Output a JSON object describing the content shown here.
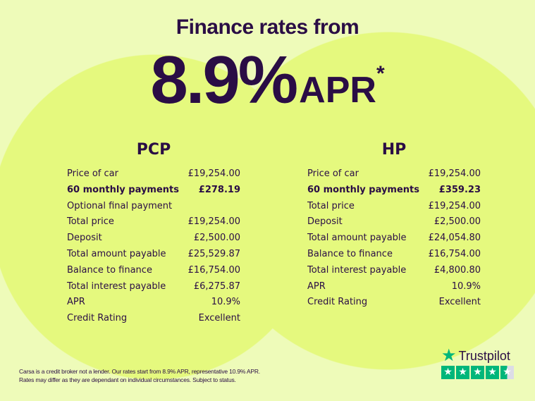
{
  "header": {
    "title": "Finance rates from",
    "rate": "8.9%",
    "apr": "APR",
    "asterisk": "*"
  },
  "pcp": {
    "title": "PCP",
    "rows": [
      {
        "label": "Price of car",
        "value": "£19,254.00"
      },
      {
        "label": "60 monthly payments",
        "value": "£278.19",
        "bold": true
      },
      {
        "label": "Optional final payment",
        "value": ""
      },
      {
        "label": "Total price",
        "value": "£19,254.00"
      },
      {
        "label": "Deposit",
        "value": "£2,500.00"
      },
      {
        "label": "Total amount payable",
        "value": "£25,529.87"
      },
      {
        "label": "Balance to finance",
        "value": "£16,754.00"
      },
      {
        "label": "Total interest payable",
        "value": "£6,275.87"
      },
      {
        "label": "APR",
        "value": "10.9%"
      },
      {
        "label": "Credit Rating",
        "value": "Excellent"
      }
    ]
  },
  "hp": {
    "title": "HP",
    "rows": [
      {
        "label": "Price of car",
        "value": "£19,254.00"
      },
      {
        "label": "60 monthly payments",
        "value": "£359.23",
        "bold": true
      },
      {
        "label": "Total price",
        "value": "£19,254.00"
      },
      {
        "label": "Deposit",
        "value": "£2,500.00"
      },
      {
        "label": "Total amount payable",
        "value": "£24,054.80"
      },
      {
        "label": "Balance to finance",
        "value": "£16,754.00"
      },
      {
        "label": "Total interest payable",
        "value": "£4,800.80"
      },
      {
        "label": "APR",
        "value": "10.9%"
      },
      {
        "label": "Credit Rating",
        "value": "Excellent"
      }
    ]
  },
  "disclaimer": {
    "line1": "Carsa is a credit broker not a lender. Our rates start from 8.9% APR, representative 10.9% APR.",
    "line2": "Rates may differ as they are dependant on individual circumstances. Subject to status."
  },
  "trustpilot": {
    "name": "Trustpilot",
    "rating_stars": 4.5,
    "icon": "star-icon",
    "color": "#00b67a"
  },
  "colors": {
    "text": "#2a0d45",
    "background": "#eefbb9",
    "circles": "#e5f97e"
  }
}
